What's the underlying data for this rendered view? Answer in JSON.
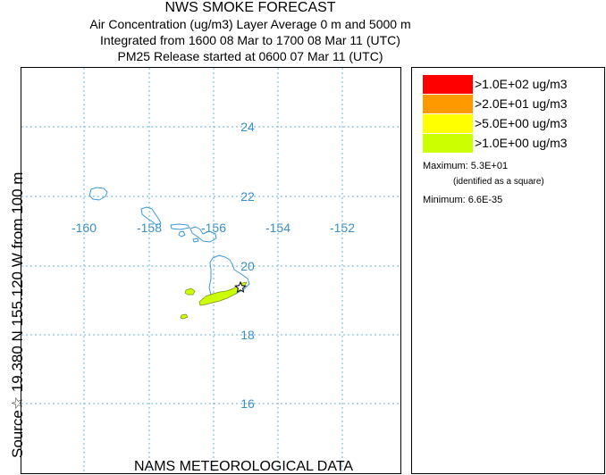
{
  "header": {
    "title": "NWS SMOKE FORECAST",
    "line2": "Air Concentration (ug/m3) Layer Average    0 m and  5000 m",
    "line3": "Integrated from 1600 08 Mar to 1700 08 Mar 11 (UTC)",
    "line4": "PM25 Release started at 0600 07 Mar 11 (UTC)"
  },
  "side_label": "Source☆ 19.380 N 155.120 W    from  100 m",
  "footer": "NAMS METEOROLOGICAL DATA",
  "map": {
    "lat_ticks": [
      "24",
      "22",
      "20",
      "18",
      "16"
    ],
    "lon_ticks": [
      "-160",
      "-158",
      "-156",
      "-154",
      "-152"
    ],
    "gridline_color": "#6ab0d8",
    "coastline_color": "#3a9ad6",
    "tick_label_color": "#3a8fc8",
    "plume_color": "#ccff00"
  },
  "legend": {
    "items": [
      {
        "label": ">1.0E+02 ug/m3",
        "color": "#ff0000"
      },
      {
        "label": ">2.0E+01 ug/m3",
        "color": "#ff9900"
      },
      {
        "label": ">5.0E+00 ug/m3",
        "color": "#ffff00"
      },
      {
        "label": ">1.0E+00 ug/m3",
        "color": "#ccff00"
      }
    ],
    "maximum": "Maximum: 5.3E+01",
    "maximum_note": "(identified as a square)",
    "minimum": "Minimum: 6.6E-35"
  }
}
